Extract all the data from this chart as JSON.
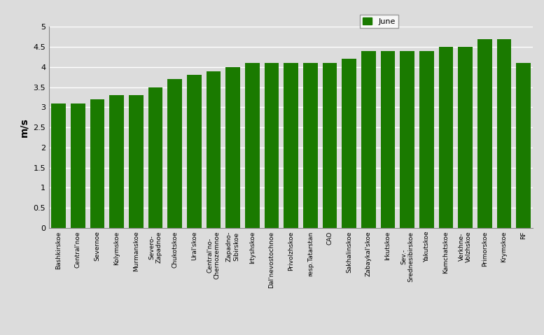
{
  "categories": [
    "Bashkirskoe",
    "Central'noe",
    "Severnoe",
    "Kolymskoe",
    "Murmanskoe",
    "Severo-\nZapadnoe",
    "Chukotskoe",
    "Ural'skoe",
    "Central'no-\nChernozemnoe",
    "Zapadno-\nSibirskoe",
    "Irtyshskoe",
    "Dal'nevostochnoe",
    "Privolzhskoe",
    "resp.Tatarstan",
    "CAO",
    "Sakhalinskoe",
    "Zabaykal'skoe",
    "Irkutskoe",
    "Sev.-\nSrednesibirskoe",
    "Yakutskoe",
    "Kamchatskoe",
    "Verkhne-\nVolzhskoe",
    "Primorskoe",
    "Krymskoe",
    "RF"
  ],
  "values": [
    3.1,
    3.1,
    3.2,
    3.3,
    3.3,
    3.5,
    3.7,
    3.8,
    3.9,
    4.0,
    4.1,
    4.1,
    4.1,
    4.1,
    4.1,
    4.2,
    4.4,
    4.4,
    4.4,
    4.4,
    4.5,
    4.5,
    4.7,
    4.7,
    4.1
  ],
  "bar_color": "#1a7a00",
  "ylabel": "m/s",
  "ylim": [
    0,
    5
  ],
  "ytick_values": [
    0,
    0.5,
    1.0,
    1.5,
    2.0,
    2.5,
    3.0,
    3.5,
    4.0,
    4.5,
    5.0
  ],
  "ytick_labels": [
    "0",
    "0.5",
    "1",
    "1.5",
    "2",
    "2.5",
    "3",
    "3.5",
    "4",
    "4.5",
    "5"
  ],
  "legend_label": "June",
  "legend_color": "#1a7a00",
  "bg_color": "#dcdcdc",
  "plot_bg_color": "#dcdcdc",
  "grid_color": "#ffffff",
  "bar_width": 0.75
}
